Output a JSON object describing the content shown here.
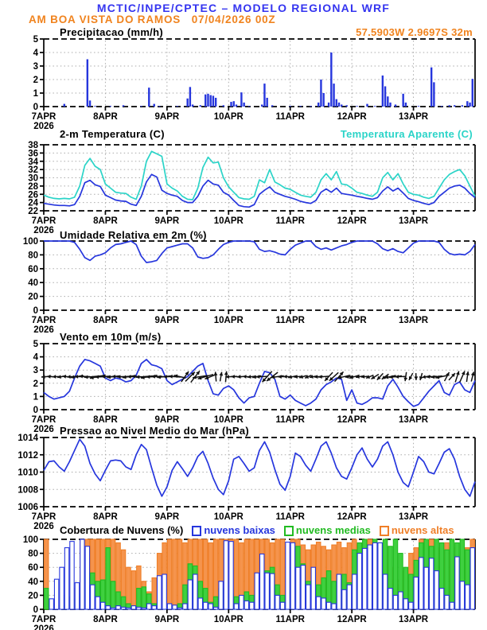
{
  "header": {
    "line1": "MCTIC/INPE/CPTEC – MODELO REGIONAL WRF",
    "station_line": "AM BOA VISTA DO RAMOS   07/04/2026 00Z",
    "location": "57.5903W 2.9697S 32m"
  },
  "colors": {
    "header_blue": "#3434f0",
    "orange": "#f0831e",
    "blue": "#2636dd",
    "cyan": "#2bd4c8",
    "green": "#33cc33",
    "grid_gray": "#aaaaaa",
    "arrow_black": "#111111"
  },
  "x_axis": {
    "tick_labels": [
      "7APR",
      "8APR",
      "9APR",
      "10APR",
      "11APR",
      "12APR",
      "13APR"
    ],
    "year_label": "2026",
    "day_ticks_hours": [
      0,
      24,
      48,
      72,
      96,
      120,
      144
    ],
    "hours_total": 168
  },
  "chart_data": [
    {
      "id": "precipitation",
      "type": "bar",
      "title": "Precipitacao (mm/h)",
      "ylabel": "mm/h",
      "ylim": [
        0,
        5
      ],
      "yticks": [
        0,
        1,
        2,
        3,
        4,
        5
      ],
      "bars_t_hours_value": [
        [
          8,
          0.2
        ],
        [
          17,
          3.5
        ],
        [
          18,
          0.45
        ],
        [
          20,
          0.05
        ],
        [
          26,
          0.05
        ],
        [
          31,
          0.1
        ],
        [
          38,
          0.05
        ],
        [
          41,
          1.4
        ],
        [
          43,
          0.2
        ],
        [
          45,
          0.05
        ],
        [
          52,
          0.05
        ],
        [
          56,
          0.6
        ],
        [
          57,
          1.45
        ],
        [
          58,
          0.15
        ],
        [
          61,
          0.1
        ],
        [
          63,
          0.9
        ],
        [
          64,
          0.95
        ],
        [
          65,
          0.85
        ],
        [
          66,
          0.8
        ],
        [
          67,
          0.65
        ],
        [
          70,
          0.1
        ],
        [
          73,
          0.35
        ],
        [
          74,
          0.4
        ],
        [
          75,
          0.15
        ],
        [
          77,
          1.05
        ],
        [
          78,
          0.3
        ],
        [
          80,
          0.05
        ],
        [
          85,
          0.15
        ],
        [
          86,
          1.7
        ],
        [
          87,
          0.65
        ],
        [
          89,
          0.1
        ],
        [
          96,
          0.05
        ],
        [
          100,
          0.05
        ],
        [
          104,
          0.05
        ],
        [
          107,
          0.3
        ],
        [
          108,
          2.0
        ],
        [
          109,
          1.0
        ],
        [
          111,
          0.3
        ],
        [
          112,
          4.0
        ],
        [
          113,
          1.7
        ],
        [
          114,
          0.55
        ],
        [
          115,
          0.3
        ],
        [
          116,
          0.15
        ],
        [
          118,
          0.1
        ],
        [
          122,
          0.05
        ],
        [
          126,
          0.2
        ],
        [
          129,
          0.05
        ],
        [
          132,
          2.3
        ],
        [
          133,
          1.5
        ],
        [
          134,
          0.75
        ],
        [
          135,
          0.3
        ],
        [
          137,
          0.15
        ],
        [
          140,
          0.95
        ],
        [
          141,
          0.3
        ],
        [
          146,
          0.05
        ],
        [
          151,
          2.9
        ],
        [
          152,
          1.8
        ],
        [
          155,
          0.05
        ],
        [
          158,
          0.1
        ],
        [
          160,
          0.1
        ],
        [
          163,
          0.1
        ],
        [
          165,
          0.4
        ],
        [
          166,
          0.3
        ],
        [
          167,
          2.05
        ]
      ]
    },
    {
      "id": "temperature",
      "type": "line",
      "title": "2-m Temperatura (C)",
      "legend_right": "Temperatura Aparente (C)",
      "ylim": [
        22,
        38
      ],
      "yticks": [
        22,
        24,
        26,
        28,
        30,
        32,
        34,
        36,
        38
      ],
      "x_step_hours": 2,
      "series": [
        {
          "name": "2-m Temperatura (C)",
          "color": "#2636dd",
          "values": [
            23.8,
            23.6,
            23.4,
            23.3,
            23.3,
            23.2,
            23.5,
            25.5,
            28.8,
            29.4,
            28.3,
            27.9,
            25.8,
            25.2,
            24.6,
            24.4,
            24.3,
            23.6,
            23.3,
            25.5,
            29.0,
            30.8,
            30.2,
            27.0,
            26.2,
            25.8,
            25.5,
            24.5,
            24.0,
            24.0,
            25.5,
            28.0,
            29.4,
            28.5,
            28.2,
            26.5,
            25.8,
            24.5,
            23.3,
            23.0,
            22.9,
            23.5,
            26.0,
            27.0,
            27.8,
            26.5,
            26.0,
            25.5,
            25.2,
            24.8,
            24.3,
            24.0,
            23.8,
            24.5,
            26.5,
            27.3,
            26.5,
            27.5,
            26.2,
            26.0,
            25.8,
            25.5,
            25.3,
            25.0,
            24.8,
            25.2,
            26.8,
            27.8,
            26.8,
            27.5,
            26.3,
            25.0,
            24.5,
            24.2,
            23.8,
            23.5,
            24.0,
            25.5,
            26.5,
            27.5,
            28.0,
            28.2,
            27.5,
            26.2,
            25.2
          ]
        },
        {
          "name": "Temperatura Aparente (C)",
          "color": "#2bd4c8",
          "values": [
            25.8,
            25.3,
            25.0,
            24.9,
            25.0,
            24.9,
            25.3,
            28.0,
            33.0,
            34.7,
            32.8,
            32.0,
            28.5,
            27.5,
            26.5,
            26.3,
            26.2,
            25.3,
            24.8,
            28.0,
            34.0,
            36.4,
            35.8,
            35.2,
            28.5,
            27.5,
            26.8,
            25.5,
            24.8,
            24.7,
            27.5,
            32.5,
            35.0,
            33.6,
            33.8,
            30.0,
            27.8,
            26.5,
            25.2,
            24.9,
            24.8,
            25.5,
            29.5,
            28.8,
            32.0,
            29.0,
            28.3,
            27.5,
            27.2,
            26.5,
            25.8,
            25.5,
            25.3,
            26.5,
            29.5,
            31.0,
            29.5,
            31.5,
            28.5,
            28.3,
            27.5,
            26.5,
            26.2,
            25.8,
            25.5,
            26.5,
            30.0,
            31.3,
            29.5,
            31.0,
            28.5,
            26.5,
            26.0,
            25.8,
            25.3,
            25.0,
            25.5,
            27.5,
            29.5,
            30.8,
            31.5,
            32.0,
            30.5,
            28.0,
            25.5
          ]
        }
      ]
    },
    {
      "id": "humidity",
      "type": "line",
      "title": "Umidade Relativa em 2m (%)",
      "ylim": [
        0,
        100
      ],
      "yticks": [
        0,
        20,
        40,
        60,
        80,
        100
      ],
      "x_step_hours": 2,
      "series": [
        {
          "name": "Umidade Relativa em 2m (%)",
          "color": "#2636dd",
          "values": [
            100,
            100,
            100,
            100,
            100,
            100,
            98,
            88,
            76,
            72,
            78,
            80,
            83,
            90,
            95,
            96,
            98,
            100,
            95,
            78,
            69,
            70,
            72,
            82,
            90,
            92,
            94,
            96,
            96,
            90,
            77,
            75,
            76,
            80,
            88,
            95,
            98,
            100,
            100,
            100,
            100,
            99,
            88,
            85,
            86,
            84,
            81,
            80,
            88,
            94,
            97,
            100,
            100,
            92,
            88,
            90,
            87,
            90,
            93,
            95,
            98,
            100,
            100,
            100,
            100,
            96,
            89,
            86,
            89,
            85,
            83,
            90,
            97,
            100,
            100,
            100,
            100,
            98,
            88,
            82,
            80,
            81,
            80,
            85,
            95
          ]
        }
      ]
    },
    {
      "id": "wind",
      "type": "line",
      "title": "Vento em 10m (m/s)",
      "ylim": [
        0,
        5
      ],
      "yticks": [
        0,
        1,
        2,
        3,
        4,
        5
      ],
      "x_step_hours": 2,
      "series": [
        {
          "name": "Vento em 10m (m/s)",
          "color": "#2636dd",
          "values": [
            1.3,
            1.0,
            0.8,
            0.9,
            1.0,
            1.4,
            2.4,
            3.3,
            3.8,
            3.7,
            3.5,
            3.3,
            2.4,
            2.2,
            2.4,
            2.3,
            2.1,
            2.2,
            2.6,
            3.5,
            3.8,
            3.4,
            3.3,
            3.1,
            2.2,
            1.9,
            2.1,
            2.3,
            2.5,
            2.9,
            3.3,
            3.5,
            2.2,
            1.2,
            1.1,
            1.6,
            1.8,
            1.5,
            0.9,
            0.5,
            0.9,
            1.0,
            2.0,
            2.9,
            2.8,
            2.3,
            1.0,
            0.8,
            1.1,
            0.7,
            0.5,
            0.3,
            0.5,
            0.8,
            1.5,
            1.9,
            2.1,
            2.4,
            2.3,
            0.7,
            1.5,
            0.5,
            0.4,
            0.6,
            0.9,
            0.9,
            0.8,
            1.8,
            2.3,
            1.7,
            1.0,
            0.6,
            0.25,
            0.4,
            0.9,
            1.4,
            1.8,
            2.2,
            1.3,
            1.1,
            1.9,
            2.1,
            1.5,
            1.3,
            2.2
          ]
        }
      ],
      "arrows": {
        "step_hours": 2,
        "center_value": 2.5,
        "angles_deg": [
          185,
          178,
          182,
          190,
          175,
          183,
          188,
          180,
          176,
          185,
          192,
          184,
          180,
          186,
          178,
          183,
          189,
          181,
          177,
          184,
          190,
          183,
          179,
          186,
          182,
          176,
          168,
          55,
          45,
          52,
          188,
          196,
          202,
          95,
          80,
          85,
          183,
          179,
          184,
          177,
          186,
          191,
          183,
          228,
          218,
          188,
          182,
          179,
          192,
          186,
          196,
          203,
          191,
          186,
          184,
          227,
          222,
          48,
          193,
          187,
          197,
          191,
          186,
          202,
          212,
          227,
          217,
          192,
          187,
          182,
          262,
          242,
          272,
          254,
          190,
          184,
          187,
          192,
          62,
          48,
          72,
          66,
          82,
          76
        ]
      }
    },
    {
      "id": "pressure",
      "type": "line",
      "title": "Pressao ao Nivel Medio do Mar (hPa)",
      "ylim": [
        1006,
        1014
      ],
      "yticks": [
        1006,
        1008,
        1010,
        1012,
        1014
      ],
      "x_step_hours": 2,
      "series": [
        {
          "name": "Pressao ao Nivel Medio do Mar (hPa)",
          "color": "#2636dd",
          "values": [
            1010.2,
            1011.2,
            1011.3,
            1010.6,
            1010.1,
            1011.2,
            1012.5,
            1013.8,
            1013.0,
            1011.0,
            1009.8,
            1009.0,
            1010.2,
            1011.3,
            1011.4,
            1011.3,
            1010.6,
            1010.3,
            1012.0,
            1013.2,
            1012.6,
            1010.5,
            1008.5,
            1007.2,
            1008.3,
            1010.2,
            1011.2,
            1010.4,
            1009.5,
            1010.5,
            1011.8,
            1012.4,
            1011.0,
            1009.3,
            1008.0,
            1007.4,
            1009.0,
            1011.5,
            1011.8,
            1011.0,
            1010.1,
            1010.5,
            1012.5,
            1013.5,
            1012.3,
            1010.3,
            1008.6,
            1007.9,
            1009.5,
            1012.2,
            1011.8,
            1010.8,
            1010.1,
            1011.5,
            1013.0,
            1013.5,
            1012.2,
            1010.5,
            1009.5,
            1009.2,
            1010.5,
            1012.0,
            1012.8,
            1011.5,
            1010.6,
            1011.5,
            1013.0,
            1013.5,
            1012.0,
            1010.0,
            1008.8,
            1008.3,
            1010.0,
            1011.8,
            1011.2,
            1010.0,
            1009.8,
            1011.0,
            1012.3,
            1012.7,
            1011.5,
            1009.5,
            1008.0,
            1007.2,
            1008.9
          ]
        }
      ]
    },
    {
      "id": "clouds",
      "type": "bar",
      "title": "Cobertura de Nuvens (%)",
      "ylim": [
        0,
        100
      ],
      "yticks": [
        0,
        20,
        40,
        60,
        80,
        100
      ],
      "bar_step_hours": 2,
      "series": [
        {
          "name": "nuvens altas",
          "outline": "#ef7f28",
          "fill": "#f5944d",
          "values": [
            100,
            0,
            0,
            0,
            0,
            0,
            30,
            100,
            100,
            100,
            100,
            100,
            100,
            100,
            95,
            85,
            60,
            55,
            62,
            40,
            25,
            45,
            80,
            95,
            100,
            100,
            100,
            95,
            100,
            100,
            100,
            100,
            95,
            100,
            100,
            100,
            100,
            100,
            95,
            100,
            100,
            100,
            100,
            100,
            95,
            100,
            100,
            90,
            100,
            100,
            92,
            85,
            92,
            96,
            90,
            85,
            92,
            96,
            88,
            95,
            100,
            92,
            100,
            100,
            88,
            85,
            92,
            60,
            42,
            35,
            55,
            80,
            88,
            100,
            92,
            100,
            88,
            85,
            95,
            88,
            78,
            55,
            88,
            100
          ]
        },
        {
          "name": "nuvens medias",
          "outline": "#22bb22",
          "fill": "#3fd03f",
          "values": [
            30,
            8,
            0,
            5,
            18,
            0,
            15,
            22,
            55,
            52,
            40,
            42,
            88,
            40,
            25,
            18,
            8,
            5,
            30,
            32,
            22,
            8,
            5,
            2,
            5,
            2,
            8,
            35,
            65,
            62,
            40,
            30,
            10,
            18,
            30,
            12,
            22,
            18,
            10,
            25,
            20,
            15,
            40,
            55,
            60,
            35,
            20,
            10,
            60,
            90,
            65,
            40,
            55,
            35,
            45,
            55,
            40,
            48,
            50,
            38,
            85,
            95,
            100,
            90,
            100,
            95,
            100,
            90,
            100,
            80,
            60,
            50,
            70,
            95,
            100,
            90,
            100,
            95,
            85,
            100,
            95,
            100,
            85,
            60
          ]
        },
        {
          "name": "nuvens baixas",
          "outline": "#2636dd",
          "fill": "#ffffff",
          "values": [
            0,
            15,
            43,
            60,
            88,
            97,
            38,
            100,
            90,
            35,
            18,
            10,
            5,
            2,
            5,
            3,
            2,
            5,
            3,
            2,
            8,
            5,
            48,
            50,
            8,
            6,
            2,
            8,
            42,
            50,
            16,
            10,
            8,
            3,
            40,
            98,
            97,
            8,
            20,
            12,
            10,
            52,
            79,
            52,
            51,
            20,
            10,
            96,
            95,
            60,
            63,
            35,
            60,
            18,
            16,
            10,
            8,
            50,
            28,
            35,
            50,
            80,
            87,
            92,
            95,
            95,
            50,
            30,
            20,
            25,
            15,
            10,
            46,
            74,
            60,
            73,
            55,
            30,
            20,
            10,
            75,
            40,
            35,
            88
          ]
        }
      ]
    }
  ]
}
